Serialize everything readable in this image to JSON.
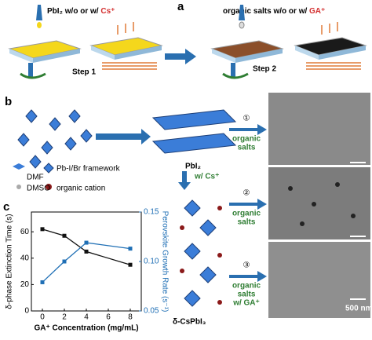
{
  "panel_a": {
    "label": "a",
    "step1_text": "PbI₂ w/o or w/ ",
    "step1_ion": "Cs⁺",
    "step1": "Step 1",
    "step2_text": "organic salts w/o or w/ ",
    "step2_ion": "GA⁺",
    "step2": "Step 2"
  },
  "panel_b": {
    "label": "b",
    "legend": [
      "DMF",
      "Pb-I/Br framework",
      "DMSO",
      "organic cation"
    ],
    "pbi2": "PbI₂",
    "cs": "w/ Cs⁺",
    "product": "δ-CsPbI₃",
    "routes": [
      {
        "number": "①",
        "lines": [
          "organic",
          "salts"
        ]
      },
      {
        "number": "②",
        "lines": [
          "organic",
          "salts"
        ]
      },
      {
        "number": "③",
        "lines": [
          "organic",
          "salts",
          "w/ GA⁺"
        ]
      }
    ],
    "scale_bar": "500 nm"
  },
  "panel_c_label": "c",
  "chart_data": {
    "type": "line",
    "x": [
      0,
      2,
      4,
      8
    ],
    "xlim": [
      -1,
      9
    ],
    "xticks": [
      0,
      2,
      4,
      6,
      8
    ],
    "ylim": [
      0,
      75
    ],
    "yticks": [
      0,
      20,
      40,
      60
    ],
    "y2lim": [
      0.05,
      0.15
    ],
    "y2ticks": [
      0.05,
      {
        "value": 0.1,
        "label": "0.10"
      },
      0.15
    ],
    "xlabel": "GA⁺ Concentration (mg/mL)",
    "ylabel": "δ-phase Extinction Time (s)",
    "y2label": "Perovskite Growth Rate (s⁻¹)",
    "series": [
      {
        "color": "#111111",
        "values": [
          62,
          57,
          45,
          35
        ]
      },
      {
        "color": "#1f6fb5",
        "axis": "y2",
        "values": [
          0.079,
          0.1,
          0.119,
          0.113
        ]
      }
    ]
  }
}
